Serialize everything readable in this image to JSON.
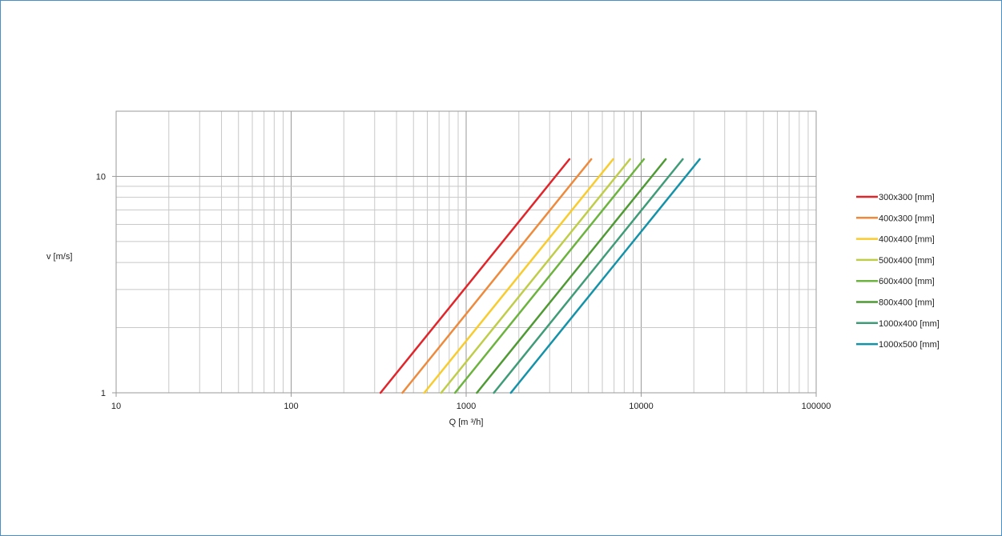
{
  "chart_data": {
    "type": "line",
    "xlabel": "Q [m ³/h]",
    "ylabel": "v [m/s]",
    "xscale": "log",
    "yscale": "log",
    "xlim": [
      10,
      100000
    ],
    "ylim": [
      1,
      20
    ],
    "xticks": [
      10,
      100,
      1000,
      10000,
      100000
    ],
    "xtick_labels": [
      "10",
      "100",
      "1000",
      "10000",
      "100000"
    ],
    "yticks": [
      1,
      10
    ],
    "ytick_labels": [
      "1",
      "10"
    ],
    "grid": true,
    "legend_position": "right",
    "series": [
      {
        "name": "300x300 [mm]",
        "color": "#e0262b",
        "x": [
          324,
          2592,
          3240,
          3888
        ],
        "y": [
          1,
          8,
          10,
          12
        ]
      },
      {
        "name": "400x300 [mm]",
        "color": "#ee8a3c",
        "x": [
          432,
          4320,
          5184
        ],
        "y": [
          1,
          10,
          12
        ]
      },
      {
        "name": "400x400 [mm]",
        "color": "#f8cc2e",
        "x": [
          576,
          5760,
          6912
        ],
        "y": [
          1,
          10,
          12
        ]
      },
      {
        "name": "500x400 [mm]",
        "color": "#bfcd4a",
        "x": [
          720,
          7200,
          8640
        ],
        "y": [
          1,
          10,
          12
        ]
      },
      {
        "name": "600x400 [mm]",
        "color": "#6db33f",
        "x": [
          864,
          8640,
          10368
        ],
        "y": [
          1,
          10,
          12
        ]
      },
      {
        "name": "800x400 [mm]",
        "color": "#4f9a35",
        "x": [
          1152,
          11520,
          13824
        ],
        "y": [
          1,
          10,
          12
        ]
      },
      {
        "name": "1000x400 [mm]",
        "color": "#3f9b78",
        "x": [
          1440,
          14400,
          17280
        ],
        "y": [
          1,
          10,
          12
        ]
      },
      {
        "name": "1000x500 [mm]",
        "color": "#1492a8",
        "x": [
          1800,
          18000,
          21600
        ],
        "y": [
          1,
          10,
          12
        ]
      }
    ]
  }
}
